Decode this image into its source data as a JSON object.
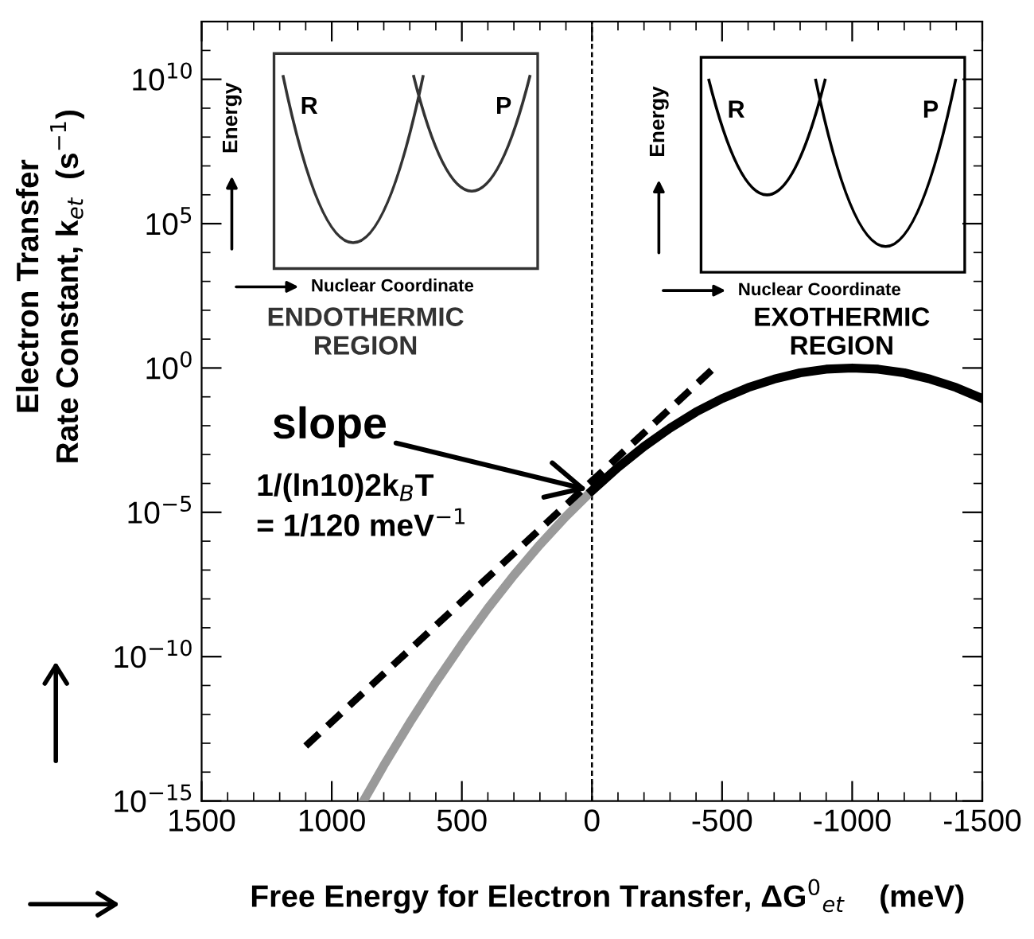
{
  "chart_data": {
    "type": "line",
    "xlabel": "Free Energy for Electron Transfer, ΔG$^{0}$$_{et}$    (meV)",
    "ylabel": "Electron Transfer\nRate Constant, k$_{et}$  (s$^{−1}$)",
    "log": "y",
    "xlim": [
      1500,
      -1500
    ],
    "xticks": [
      1500,
      1000,
      500,
      0,
      -500,
      -1000,
      -1500
    ],
    "ylim": [
      1e-15,
      1000000000000.0
    ],
    "yticks": [
      {
        "value": 1e-15,
        "label": "10$^{−15}$"
      },
      {
        "value": 1e-10,
        "label": "10$^{−10}$"
      },
      {
        "value": 1e-05,
        "label": "10$^{−5}$"
      },
      {
        "value": 1,
        "label": "10$^{0}$"
      },
      {
        "value": 100000.0,
        "label": "10$^{5}$"
      },
      {
        "value": 10000000000.0,
        "label": "10$^{10}$"
      }
    ],
    "series": [
      {
        "color": "#9a9a9a",
        "line_style": "solid",
        "x": [
          878,
          800,
          700,
          600,
          500,
          400,
          300,
          200,
          100,
          0
        ],
        "values": [
          1e-15,
          1.7e-14,
          5.2e-13,
          1.3e-11,
          2.7e-10,
          4.7e-09,
          6.6e-08,
          7.6e-07,
          7.2e-06,
          5.6e-05
        ]
      },
      {
        "color": "#000000",
        "line_style": "solid",
        "x": [
          0,
          -100,
          -200,
          -300,
          -400,
          -500,
          -600,
          -700,
          -800,
          -900,
          -1000,
          -1100,
          -1200,
          -1300,
          -1400,
          -1500
        ],
        "values": [
          5.6e-05,
          0.00036,
          0.0019,
          0.0083,
          0.03,
          0.087,
          0.21,
          0.41,
          0.68,
          0.91,
          1,
          0.91,
          0.68,
          0.41,
          0.21,
          0.087
        ]
      },
      {
        "color": "#000000",
        "line_style": "dashed",
        "x": [
          1100,
          -490
        ],
        "values": [
          8e-14,
          1.5
        ]
      }
    ],
    "ref_lines": [
      {
        "axis": "x",
        "value": 0,
        "line_style": "dashed",
        "color": "#000000"
      }
    ],
    "annotations": [
      {
        "text": "slope",
        "x": 0,
        "y": 5.6e-05
      },
      "1/(ln10)2k$_{B}$T\n= 1/120 meV$^{−1}$",
      "ENDOTHERMIC\nREGION",
      "EXOTHERMIC\nREGION",
      "R",
      "P",
      "Energy",
      "Nuclear Coordinate",
      "R",
      "P",
      "Energy",
      "Nuclear Coordinate"
    ],
    "grid": false,
    "legend": false
  }
}
